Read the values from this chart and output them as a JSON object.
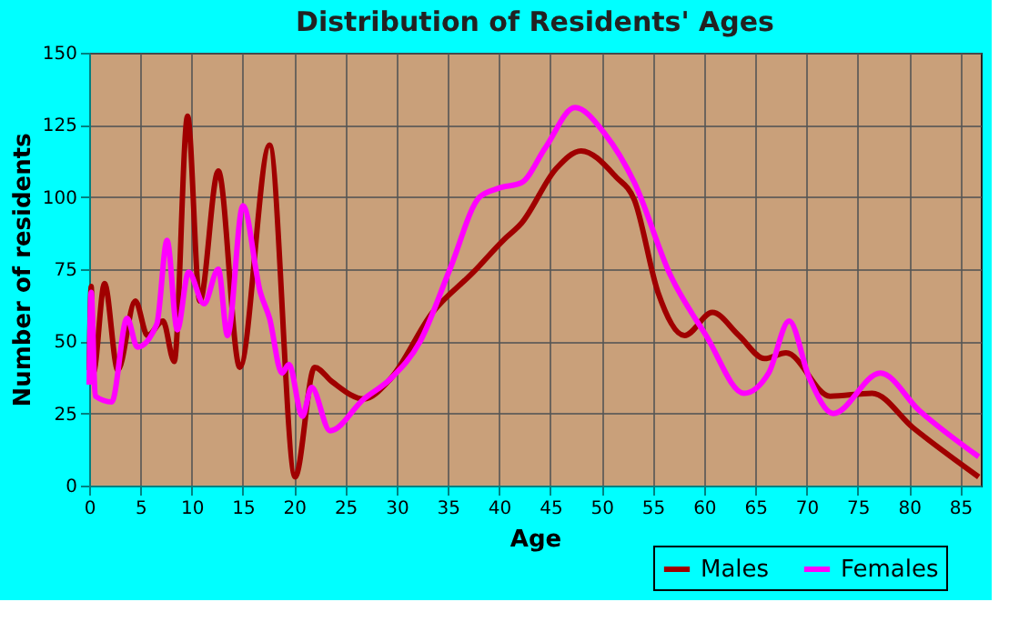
{
  "chart_data": {
    "type": "line",
    "title": "Distribution of Residents' Ages",
    "xlabel": "Age",
    "ylabel": "Number of residents",
    "xlim": [
      0,
      87
    ],
    "xticks": [
      0,
      5,
      10,
      15,
      20,
      25,
      30,
      35,
      40,
      45,
      50,
      55,
      60,
      65,
      70,
      75,
      80,
      85
    ],
    "ylim": [
      0,
      150
    ],
    "yticks": [
      0,
      25,
      50,
      75,
      100,
      125,
      150
    ],
    "grid": true,
    "legend": "bottom right",
    "marker": "none",
    "line_style": "solid",
    "series": [
      {
        "name": "Males",
        "color": "#a00000",
        "x": [
          0,
          0.2,
          0.4,
          1.5,
          2.8,
          4.5,
          5.7,
          7.2,
          8.3,
          9.6,
          10.8,
          12.6,
          14.7,
          17.6,
          20.1,
          22,
          23.7,
          26.8,
          29.4,
          33.5,
          37.5,
          40.4,
          42.2,
          45.6,
          48,
          51.4,
          53.2,
          55.5,
          58.1,
          60.8,
          63.4,
          65.9,
          68,
          72.3,
          76.4,
          80.4,
          86.8
        ],
        "values": [
          40,
          69,
          39,
          70,
          40,
          64,
          52,
          57,
          43,
          128,
          64,
          109,
          41,
          118,
          3,
          41,
          36,
          30,
          37,
          60,
          74,
          85,
          91,
          110,
          116,
          107,
          99,
          67,
          52,
          60,
          52,
          44,
          46,
          31,
          32,
          20,
          3
        ]
      },
      {
        "name": "Females",
        "color": "#ff00ff",
        "x": [
          0,
          0.2,
          0.6,
          2.2,
          3.7,
          4.7,
          6.6,
          7.6,
          8.6,
          9.7,
          11.2,
          12.6,
          13.5,
          15,
          16.7,
          17.6,
          18.8,
          19.5,
          20.8,
          21.7,
          23.5,
          26.8,
          29.4,
          32.3,
          35.2,
          38.1,
          39.9,
          42.2,
          44.5,
          47.4,
          50.3,
          53.2,
          56.7,
          60.2,
          63.9,
          66.3,
          68.3,
          70.3,
          72.6,
          77.2,
          81,
          86.8
        ],
        "values": [
          35,
          67,
          31,
          29,
          58,
          48,
          56,
          85,
          54,
          74,
          63,
          75,
          52,
          97,
          67,
          58,
          39,
          42,
          24,
          34,
          19,
          30,
          37,
          50,
          75,
          100,
          103,
          105,
          117,
          131,
          122,
          105,
          73,
          52,
          32,
          39,
          57,
          37,
          25,
          39,
          26,
          10
        ]
      }
    ]
  }
}
